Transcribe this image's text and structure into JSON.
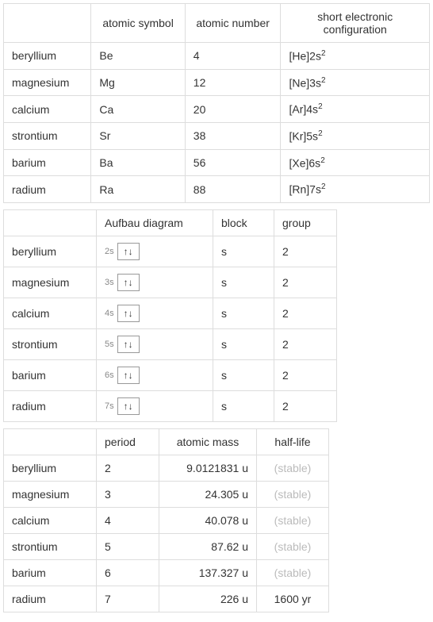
{
  "table1": {
    "headers": {
      "col1": "",
      "col2": "atomic symbol",
      "col3": "atomic number",
      "col4": "short electronic configuration"
    },
    "rows": [
      {
        "element": "beryllium",
        "symbol": "Be",
        "number": "4",
        "config_html": "[He]2s<sup>2</sup>"
      },
      {
        "element": "magnesium",
        "symbol": "Mg",
        "number": "12",
        "config_html": "[Ne]3s<sup>2</sup>"
      },
      {
        "element": "calcium",
        "symbol": "Ca",
        "number": "20",
        "config_html": "[Ar]4s<sup>2</sup>"
      },
      {
        "element": "strontium",
        "symbol": "Sr",
        "number": "38",
        "config_html": "[Kr]5s<sup>2</sup>"
      },
      {
        "element": "barium",
        "symbol": "Ba",
        "number": "56",
        "config_html": "[Xe]6s<sup>2</sup>"
      },
      {
        "element": "radium",
        "symbol": "Ra",
        "number": "88",
        "config_html": "[Rn]7s<sup>2</sup>"
      }
    ],
    "col_widths": {
      "c1": 96,
      "c2": 118,
      "c3": 120,
      "c4": 200
    }
  },
  "table2": {
    "headers": {
      "col1": "",
      "col2": "Aufbau diagram",
      "col3": "block",
      "col4": "group"
    },
    "rows": [
      {
        "element": "beryllium",
        "orbital": "2s",
        "block": "s",
        "group": "2"
      },
      {
        "element": "magnesium",
        "orbital": "3s",
        "block": "s",
        "group": "2"
      },
      {
        "element": "calcium",
        "orbital": "4s",
        "block": "s",
        "group": "2"
      },
      {
        "element": "strontium",
        "orbital": "5s",
        "block": "s",
        "group": "2"
      },
      {
        "element": "barium",
        "orbital": "6s",
        "block": "s",
        "group": "2"
      },
      {
        "element": "radium",
        "orbital": "7s",
        "block": "s",
        "group": "2"
      }
    ],
    "arrows": "↑↓",
    "col_widths": {
      "c1": 96,
      "c2": 126,
      "c3": 56,
      "c4": 58
    }
  },
  "table3": {
    "headers": {
      "col1": "",
      "col2": "period",
      "col3": "atomic mass",
      "col4": "half-life"
    },
    "rows": [
      {
        "element": "beryllium",
        "period": "2",
        "mass": "9.0121831 u",
        "halflife": "(stable)",
        "stable": true
      },
      {
        "element": "magnesium",
        "period": "3",
        "mass": "24.305 u",
        "halflife": "(stable)",
        "stable": true
      },
      {
        "element": "calcium",
        "period": "4",
        "mass": "40.078 u",
        "halflife": "(stable)",
        "stable": true
      },
      {
        "element": "strontium",
        "period": "5",
        "mass": "87.62 u",
        "halflife": "(stable)",
        "stable": true
      },
      {
        "element": "barium",
        "period": "6",
        "mass": "137.327 u",
        "halflife": "(stable)",
        "stable": true
      },
      {
        "element": "radium",
        "period": "7",
        "mass": "226 u",
        "halflife": "1600 yr",
        "stable": false
      }
    ],
    "col_widths": {
      "c1": 96,
      "c2": 58,
      "c3": 102,
      "c4": 70
    }
  },
  "style": {
    "border_color": "#ddd",
    "text_color": "#333",
    "muted_color": "#bbb",
    "font_size": 14
  }
}
